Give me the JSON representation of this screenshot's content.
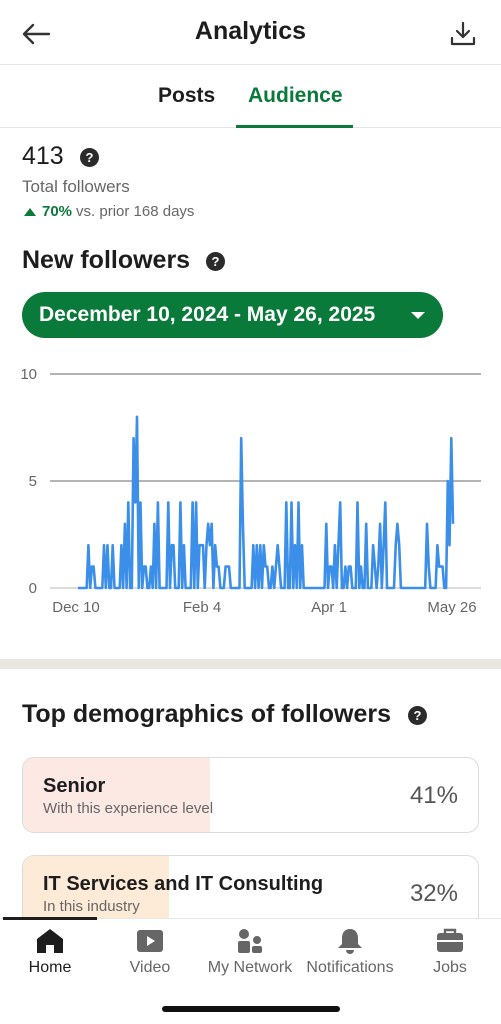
{
  "header": {
    "title": "Analytics",
    "back_icon": "arrow-left-icon",
    "download_icon": "download-icon"
  },
  "tabs": [
    {
      "label": "Posts",
      "active": false
    },
    {
      "label": "Audience",
      "active": true
    }
  ],
  "summary": {
    "total_value": "413",
    "total_label": "Total followers",
    "trend_pct": "70%",
    "trend_text": "vs. prior 168 days",
    "trend_direction": "up"
  },
  "new_followers": {
    "title": "New followers",
    "date_range": "December 10, 2024 - May 26, 2025"
  },
  "chart_data": {
    "type": "line",
    "title": "",
    "xlabel": "",
    "ylabel": "",
    "ylim": [
      0,
      10
    ],
    "yticks": [
      "0",
      "5",
      "10"
    ],
    "xticks": [
      "Dec 10",
      "Feb 4",
      "Apr 1",
      "May 26"
    ],
    "grid": true,
    "color": "#3b8fe8",
    "series": [
      {
        "values": [
          0,
          0,
          0,
          0,
          0,
          0,
          2,
          0,
          1,
          1,
          0,
          0,
          0,
          0,
          0,
          2,
          0,
          2,
          0,
          0,
          2,
          0,
          0,
          0,
          0,
          2,
          0,
          3,
          0,
          4,
          0,
          0,
          7,
          4,
          8,
          0,
          4,
          0,
          1,
          1,
          0,
          0,
          1,
          0,
          3,
          0,
          4,
          0,
          0,
          0,
          0,
          0,
          4,
          0,
          2,
          2,
          0,
          0,
          0,
          4,
          0,
          2,
          0,
          0,
          0,
          0,
          4,
          0,
          4,
          0,
          2,
          2,
          2,
          0,
          2,
          3,
          2,
          3,
          0,
          2,
          1,
          1,
          0,
          0,
          0,
          1,
          1,
          1,
          0,
          0,
          0,
          0,
          0,
          0,
          7,
          3,
          0,
          0,
          0,
          0,
          0,
          2,
          0,
          2,
          0,
          2,
          0,
          2,
          1,
          1,
          0,
          0,
          1,
          0,
          1,
          2,
          1,
          0,
          0,
          0,
          4,
          0,
          0,
          4,
          0,
          2,
          0,
          4,
          0,
          2,
          0,
          0,
          0,
          0,
          0,
          0,
          0,
          0,
          0,
          0,
          0,
          0,
          0,
          3,
          0,
          1,
          1,
          0,
          2,
          0,
          2,
          4,
          0,
          0,
          1,
          0,
          1,
          1,
          0,
          0,
          0,
          4,
          0,
          1,
          0,
          0,
          3,
          0,
          0,
          0,
          2,
          1,
          0,
          1,
          3,
          0,
          2,
          4,
          0,
          0,
          0,
          0,
          0,
          2,
          3,
          2,
          0,
          0,
          0,
          0,
          0,
          0,
          0,
          0,
          0,
          0,
          0,
          0,
          0,
          0,
          0,
          3,
          1,
          0,
          0,
          0,
          0,
          2,
          1,
          1,
          1,
          0,
          0,
          5,
          2,
          7,
          3
        ]
      }
    ]
  },
  "demographics": {
    "title": "Top demographics of followers",
    "items": [
      {
        "name": "Senior",
        "sub": "With this experience level",
        "pct": "41%",
        "fill": 0.41,
        "color": "#fde9e4"
      },
      {
        "name": "IT Services and IT Consulting",
        "sub": "In this industry",
        "pct": "32%",
        "fill": 0.32,
        "color": "#fdebd7"
      }
    ]
  },
  "nav": [
    {
      "label": "Home",
      "icon": "home-icon",
      "active": true
    },
    {
      "label": "Video",
      "icon": "video-icon",
      "active": false
    },
    {
      "label": "My Network",
      "icon": "network-icon",
      "active": false
    },
    {
      "label": "Notifications",
      "icon": "bell-icon",
      "active": false
    },
    {
      "label": "Jobs",
      "icon": "briefcase-icon",
      "active": false
    }
  ]
}
